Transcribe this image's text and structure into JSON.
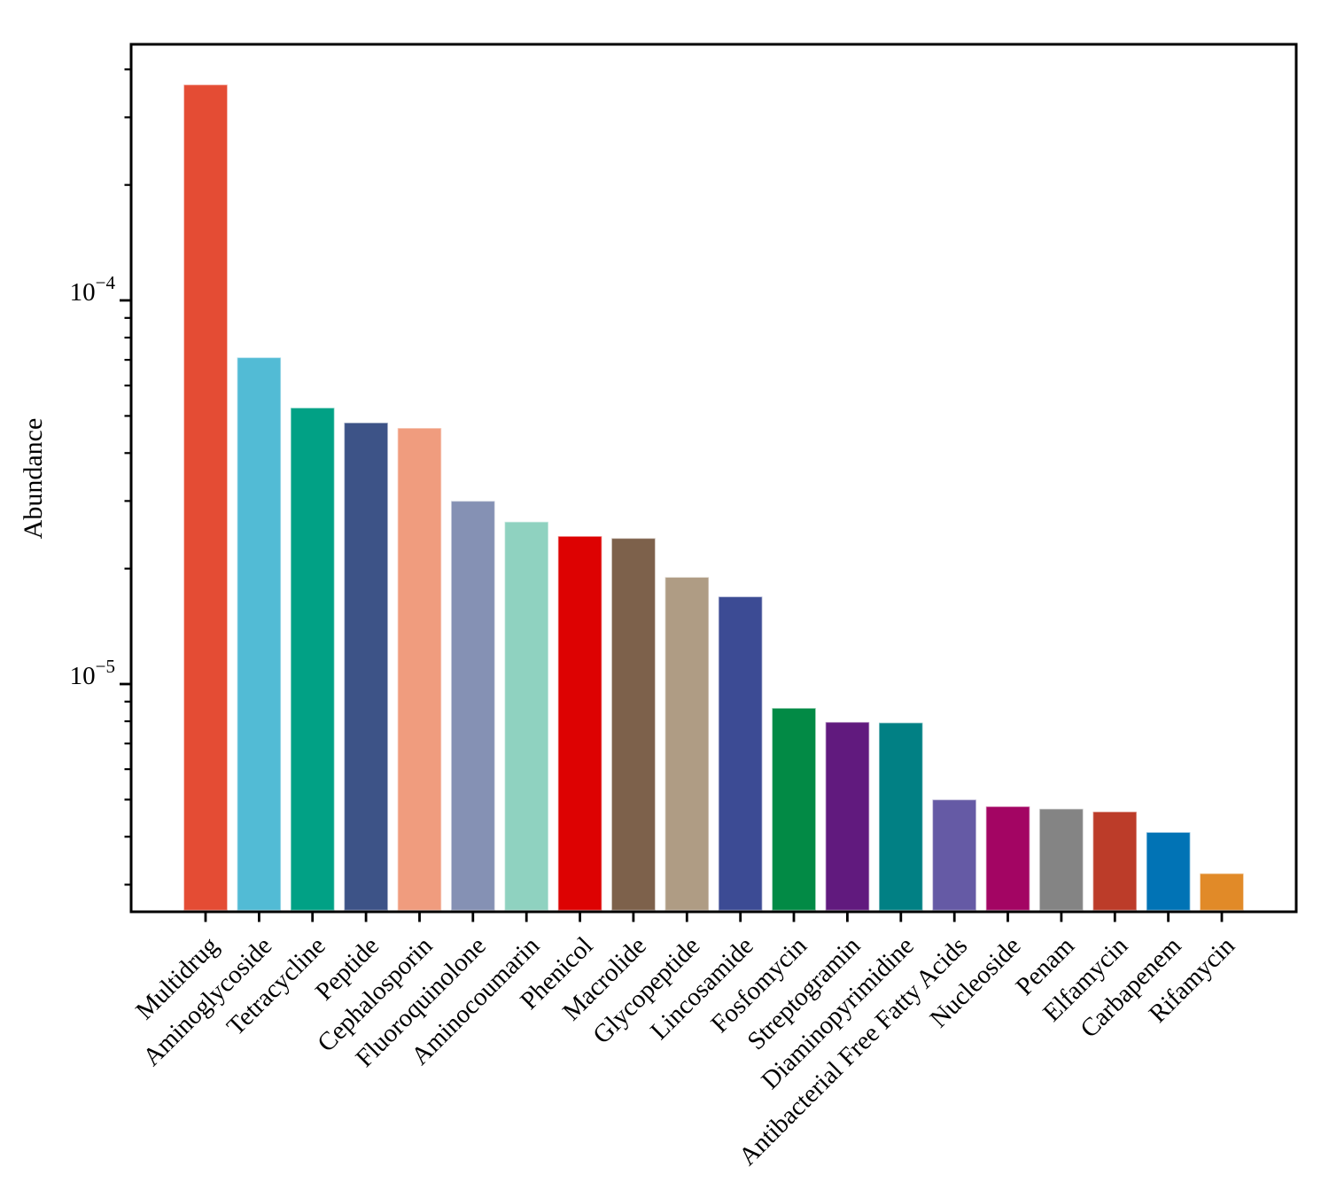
{
  "chart_data": {
    "type": "bar",
    "title": "",
    "ylabel": "Abundance",
    "xlabel": "",
    "yscale": "log",
    "ylim": [
      2.55e-06,
      0.000465
    ],
    "grid": false,
    "legend": false,
    "y_major_ticks": [
      {
        "value": 0.0001,
        "mantissa": "10",
        "exponent": "−4"
      },
      {
        "value": 1e-05,
        "mantissa": "10",
        "exponent": "−5"
      }
    ],
    "y_minor_tick_multiples": [
      2,
      3,
      4,
      5,
      6,
      7,
      8,
      9
    ],
    "y_minor_tick_exponents": [
      -6,
      -5,
      -4
    ],
    "categories": [
      "Multidrug",
      "Aminoglycoside",
      "Tetracycline",
      "Peptide",
      "Cephalosporin",
      "Fluoroquinolone",
      "Aminocoumarin",
      "Phenicol",
      "Macrolide",
      "Glycopeptide",
      "Lincosamide",
      "Fosfomycin",
      "Streptogramin",
      "Diaminopyrimidine",
      "Antibacterial Free Fatty Acids",
      "Nucleoside",
      "Penam",
      "Elfamycin",
      "Carbapenem",
      "Rifamycin"
    ],
    "values": [
      0.000365,
      7.1e-05,
      5.25e-05,
      4.8e-05,
      4.65e-05,
      3e-05,
      2.65e-05,
      2.43e-05,
      2.4e-05,
      1.9e-05,
      1.69e-05,
      8.66e-06,
      7.96e-06,
      7.93e-06,
      5e-06,
      4.8e-06,
      4.73e-06,
      4.65e-06,
      4.11e-06,
      3.21e-06
    ],
    "colors": [
      "#e44c34",
      "#52bbd5",
      "#01a185",
      "#3d5387",
      "#f09c7e",
      "#8591b4",
      "#8fd2c0",
      "#dd0202",
      "#7d614b",
      "#af9c84",
      "#3c4b94",
      "#028a45",
      "#611a7e",
      "#018084",
      "#655aa5",
      "#a30563",
      "#848484",
      "#bc3c29",
      "#0173b5",
      "#e18a28"
    ],
    "axis_color": "#000000",
    "bar_edge_color": "rgba(255,255,255,0.55)"
  }
}
